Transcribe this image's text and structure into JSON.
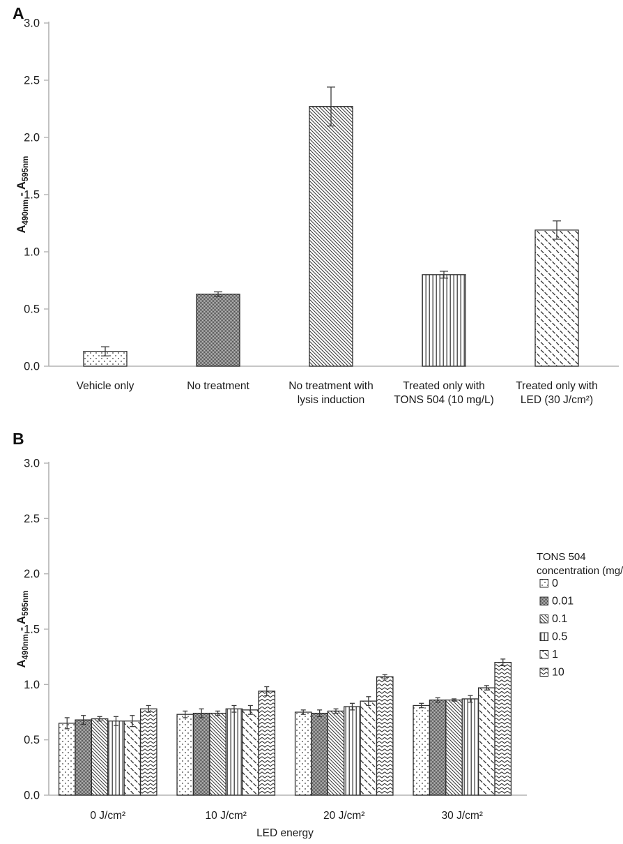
{
  "figure": {
    "panel_a_label": "A",
    "panel_b_label": "B"
  },
  "chart_data": [
    {
      "panel": "A",
      "type": "bar",
      "title": "",
      "ylabel": "A490nm - A595nm",
      "ylabel_parts": [
        {
          "t": "A"
        },
        {
          "t": "490nm",
          "sub": true
        },
        {
          "t": " - "
        },
        {
          "t": "A"
        },
        {
          "t": "595nm",
          "sub": true
        }
      ],
      "ylim": [
        0,
        3.0
      ],
      "ytick_step": 0.5,
      "yticks": [
        "0.0",
        "0.5",
        "1.0",
        "1.5",
        "2.0",
        "2.5",
        "3.0"
      ],
      "grid": false,
      "categories": [
        "Vehicle only",
        "No treatment",
        "No treatment with lysis induction",
        "Treated only with TONS 504 (10 mg/L)",
        "Treated only with LED (30 J/cm²)"
      ],
      "category_lines": [
        [
          "Vehicle only"
        ],
        [
          "No treatment"
        ],
        [
          "No treatment with",
          "lysis induction"
        ],
        [
          "Treated only with",
          "TONS 504 (10 mg/L)"
        ],
        [
          "Treated only with",
          "LED (30 J/cm²)"
        ]
      ],
      "values": [
        0.13,
        0.63,
        2.27,
        0.8,
        1.19
      ],
      "errors": [
        0.04,
        0.02,
        0.17,
        0.03,
        0.08
      ],
      "bar_patterns": [
        "dotted",
        "gray-checker",
        "diagonal-hatch",
        "vertical-lines",
        "diagonal-dashes"
      ]
    },
    {
      "panel": "B",
      "type": "grouped-bar",
      "title": "",
      "xlabel": "LED energy",
      "ylabel": "A490nm - A595nm",
      "ylabel_parts": [
        {
          "t": "A"
        },
        {
          "t": "490nm",
          "sub": true
        },
        {
          "t": " - "
        },
        {
          "t": "A"
        },
        {
          "t": "595nm",
          "sub": true
        }
      ],
      "ylim": [
        0,
        3.0
      ],
      "ytick_step": 0.5,
      "yticks": [
        "0.0",
        "0.5",
        "1.0",
        "1.5",
        "2.0",
        "2.5",
        "3.0"
      ],
      "grid": false,
      "categories": [
        "0 J/cm²",
        "10 J/cm²",
        "20 J/cm²",
        "30 J/cm²"
      ],
      "legend": {
        "position": "right",
        "title_lines": [
          "TONS 504",
          "concentration (mg/L)"
        ]
      },
      "series": [
        {
          "name": "0",
          "pattern": "dotted",
          "values": [
            0.65,
            0.73,
            0.75,
            0.81
          ],
          "errors": [
            0.05,
            0.03,
            0.02,
            0.02
          ]
        },
        {
          "name": "0.01",
          "pattern": "gray-checker",
          "values": [
            0.68,
            0.74,
            0.74,
            0.86
          ],
          "errors": [
            0.04,
            0.04,
            0.03,
            0.02
          ]
        },
        {
          "name": "0.1",
          "pattern": "diagonal-hatch",
          "values": [
            0.69,
            0.74,
            0.76,
            0.86
          ],
          "errors": [
            0.02,
            0.02,
            0.02,
            0.01
          ]
        },
        {
          "name": "0.5",
          "pattern": "vertical-lines",
          "values": [
            0.67,
            0.78,
            0.8,
            0.87
          ],
          "errors": [
            0.04,
            0.03,
            0.03,
            0.03
          ]
        },
        {
          "name": "1",
          "pattern": "diagonal-dashes",
          "values": [
            0.67,
            0.77,
            0.85,
            0.97
          ],
          "errors": [
            0.05,
            0.04,
            0.04,
            0.02
          ]
        },
        {
          "name": "10",
          "pattern": "zigzag",
          "values": [
            0.78,
            0.94,
            1.07,
            1.2
          ],
          "errors": [
            0.03,
            0.04,
            0.02,
            0.03
          ]
        }
      ],
      "colors": {
        "axis": "#b3b3b3",
        "text": "#1a1a1a",
        "bar_outline": "#2e2e2e",
        "error_bar": "#3a3a3a"
      }
    }
  ]
}
